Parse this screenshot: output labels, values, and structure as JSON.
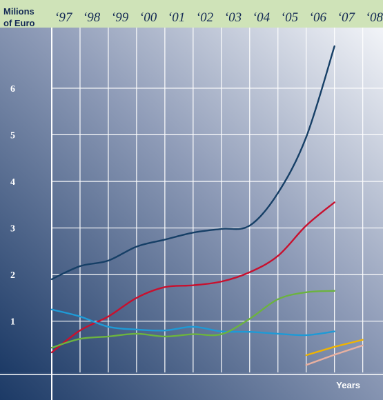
{
  "chart_data": {
    "type": "line",
    "ylabel_line1": "Milions",
    "ylabel_line2": "of Euro",
    "xlabel": "Years",
    "categories": [
      "‘97",
      "‘98",
      "‘99",
      "‘00",
      "‘01",
      "‘02",
      "‘03",
      "‘04",
      "‘05",
      "‘06",
      "‘07",
      "‘08"
    ],
    "x": [
      1997,
      1998,
      1999,
      2000,
      2001,
      2002,
      2003,
      2004,
      2005,
      2006,
      2007,
      2008
    ],
    "y_ticks": [
      1,
      2,
      3,
      4,
      5,
      6
    ],
    "ylim": [
      -0.1,
      7.3
    ],
    "xlim": [
      1997,
      2008.35
    ],
    "grid": true,
    "series": [
      {
        "color": "#163f66",
        "x": [
          1997,
          1998,
          1999,
          2000,
          2001,
          2002,
          2003,
          2004,
          2005,
          2006,
          2007,
          2008
        ],
        "values": [
          1.9,
          2.18,
          2.3,
          2.6,
          2.75,
          2.9,
          2.98,
          3.05,
          3.75,
          4.95,
          6.9,
          null
        ]
      },
      {
        "color": "#c8102e",
        "x": [
          1997,
          1998,
          1999,
          2000,
          2001,
          2002,
          2003,
          2004,
          2005,
          2006,
          2007,
          2008
        ],
        "values": [
          0.33,
          0.8,
          1.1,
          1.5,
          1.73,
          1.77,
          1.85,
          2.05,
          2.4,
          3.05,
          3.55,
          null
        ]
      },
      {
        "color": "#1e9ad6",
        "x": [
          1997,
          1998,
          1999,
          2000,
          2001,
          2002,
          2003,
          2004,
          2005,
          2006,
          2007,
          2008
        ],
        "values": [
          1.25,
          1.1,
          0.88,
          0.82,
          0.8,
          0.88,
          0.78,
          0.77,
          0.73,
          0.7,
          0.78,
          null
        ]
      },
      {
        "color": "#6cb33f",
        "x": [
          1997,
          1998,
          1999,
          2000,
          2001,
          2002,
          2003,
          2004,
          2005,
          2006,
          2007,
          2008
        ],
        "values": [
          0.43,
          0.62,
          0.67,
          0.73,
          0.67,
          0.72,
          0.72,
          1.05,
          1.47,
          1.62,
          1.65,
          null
        ]
      },
      {
        "color": "#f0b400",
        "x": [
          2006,
          2007,
          2008
        ],
        "values": [
          0.27,
          0.45,
          0.6
        ]
      },
      {
        "color": "#e8b0a0",
        "x": [
          2006,
          2007,
          2008
        ],
        "values": [
          0.06,
          0.28,
          0.48
        ]
      }
    ]
  }
}
